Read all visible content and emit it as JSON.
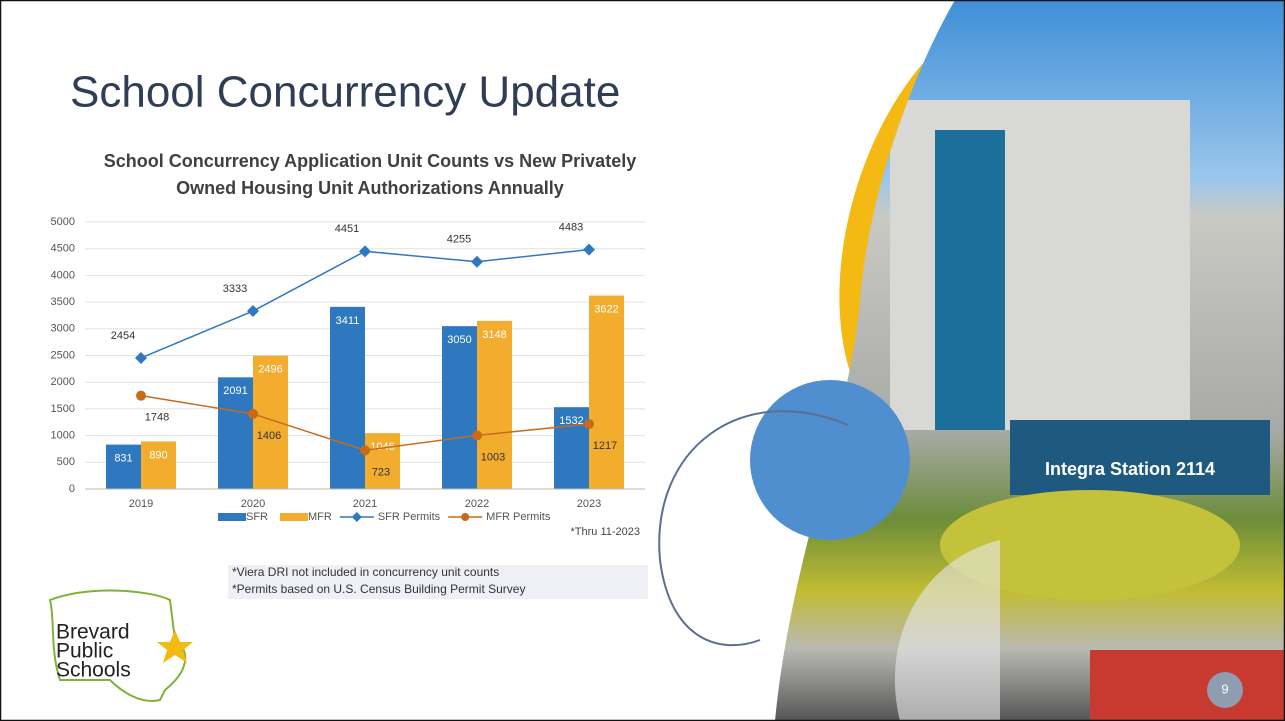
{
  "slide_title": "School Concurrency Update",
  "chart_data": {
    "type": "bar",
    "title": "School Concurrency Application Unit Counts vs New Privately Owned Housing Unit Authorizations Annually",
    "categories": [
      "2019",
      "2020",
      "2021",
      "2022",
      "2023"
    ],
    "series": [
      {
        "name": "SFR",
        "type": "bar",
        "color": "#2e78c0",
        "values": [
          831,
          2091,
          3411,
          3050,
          1532
        ]
      },
      {
        "name": "MFR",
        "type": "bar",
        "color": "#f2ad2f",
        "values": [
          890,
          2496,
          1046,
          3148,
          3622
        ]
      },
      {
        "name": "SFR Permits",
        "type": "line",
        "color": "#2e78c0",
        "marker": "diamond",
        "values": [
          2454,
          3333,
          4451,
          4255,
          4483
        ]
      },
      {
        "name": "MFR Permits",
        "type": "line",
        "color": "#c86a1a",
        "marker": "circle",
        "values": [
          1748,
          1406,
          723,
          1003,
          1217
        ]
      }
    ],
    "ylim": [
      0,
      5000
    ],
    "yticks": [
      0,
      500,
      1000,
      1500,
      2000,
      2500,
      3000,
      3500,
      4000,
      4500,
      5000
    ],
    "grid": true,
    "annotation": "*Thru 11-2023"
  },
  "notes": [
    "*Viera DRI not included in concurrency unit counts",
    "*Permits based on U.S. Census Building Permit Survey"
  ],
  "logo": [
    "Brevard",
    "Public",
    "Schools"
  ],
  "page_number": "9"
}
